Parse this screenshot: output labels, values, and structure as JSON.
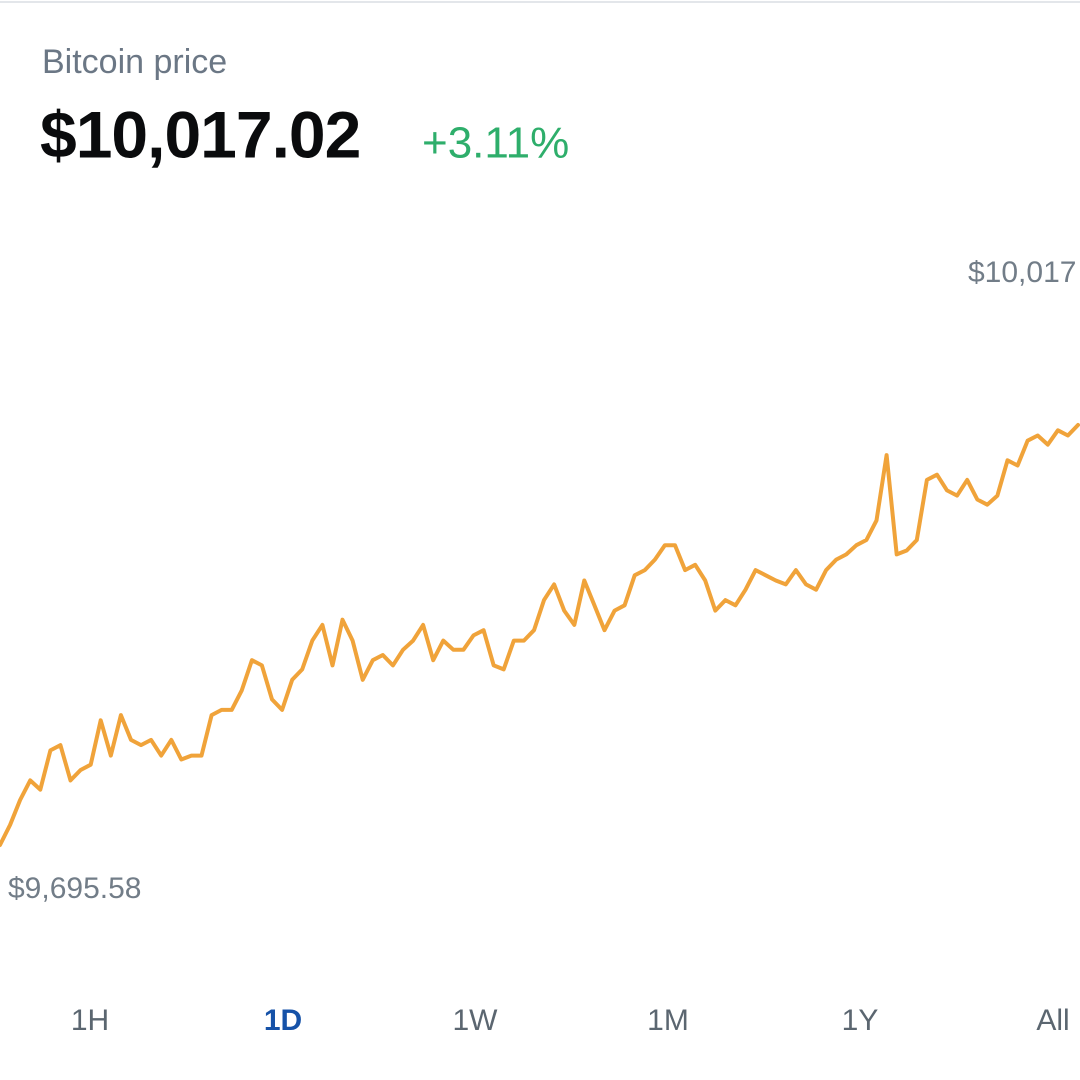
{
  "chart_data": {
    "type": "line",
    "title": "Bitcoin price",
    "price": "$10,017.02",
    "change": "+3.11%",
    "high_label": "$10,017",
    "low_label": "$9,695.58",
    "ranges": [
      "1H",
      "1D",
      "1W",
      "1M",
      "1Y",
      "All"
    ],
    "selected_range": "1D",
    "color": "#f0a33a",
    "change_color": "#2eae6b",
    "ylim": [
      9695.58,
      10017.02
    ],
    "values": [
      9695.58,
      9711,
      9730,
      9745,
      9738,
      9768,
      9772,
      9745,
      9753,
      9757,
      9791,
      9764,
      9795,
      9776,
      9772,
      9776,
      9764,
      9776,
      9761,
      9764,
      9764,
      9795,
      9799,
      9799,
      9814,
      9837,
      9833,
      9807,
      9799,
      9822,
      9830,
      9852,
      9864,
      9833,
      9868,
      9852,
      9822,
      9837,
      9841,
      9833,
      9845,
      9852,
      9864,
      9837,
      9852,
      9845,
      9845,
      9856,
      9860,
      9833,
      9830,
      9852,
      9852,
      9860,
      9883,
      9895,
      9875,
      9864,
      9898,
      9879,
      9860,
      9875,
      9879,
      9902,
      9906,
      9914,
      9925,
      9925,
      9906,
      9910,
      9898,
      9875,
      9883,
      9879,
      9891,
      9906,
      9902,
      9898,
      9895,
      9906,
      9895,
      9891,
      9906,
      9914,
      9918,
      9925,
      9929,
      9944,
      9994,
      9918,
      9921,
      9929,
      9975,
      9979,
      9967,
      9963,
      9975,
      9960,
      9956,
      9963,
      9990,
      9986,
      10005,
      10009,
      10002,
      10013,
      10009,
      10017.02
    ]
  }
}
